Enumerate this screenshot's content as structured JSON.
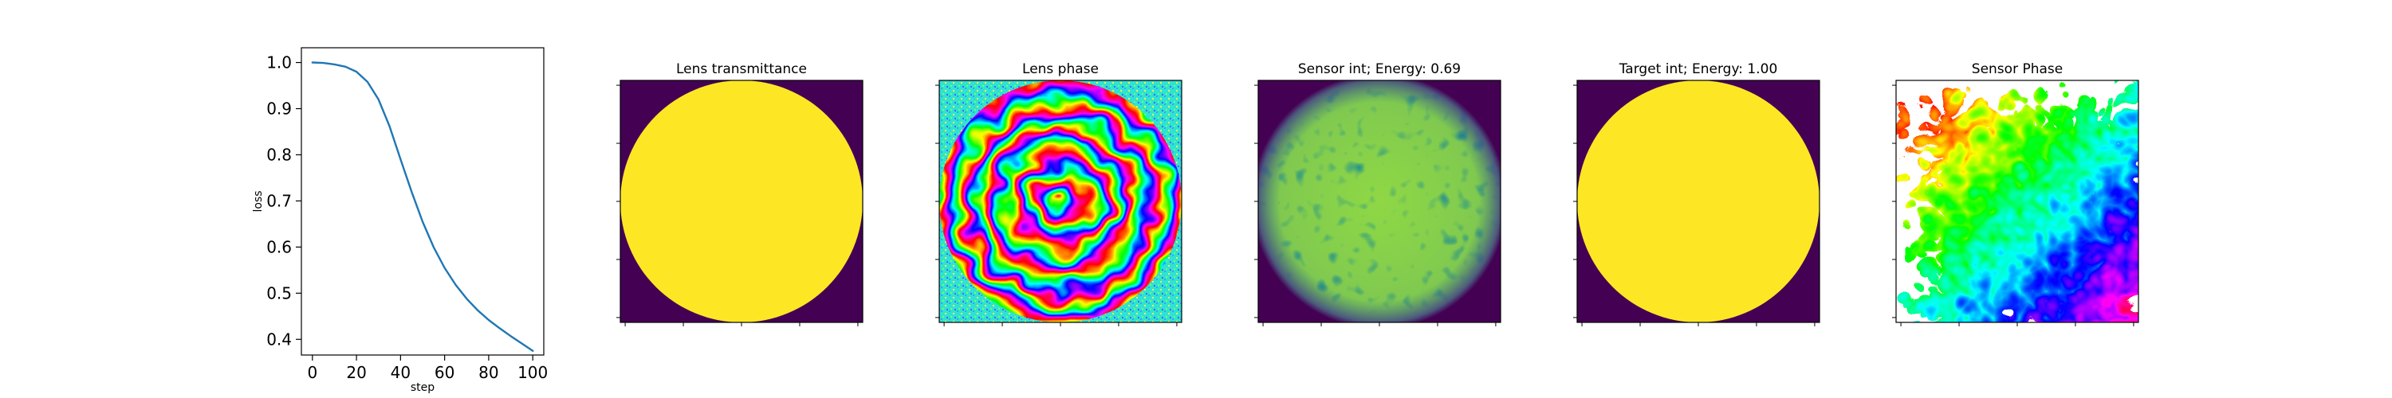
{
  "chart_data": [
    {
      "type": "line",
      "xlabel": "step",
      "ylabel": "loss",
      "xlim": [
        -5,
        105
      ],
      "ylim": [
        0.366,
        1.032
      ],
      "xticks": [
        "0",
        "20",
        "40",
        "60",
        "80",
        "100"
      ],
      "yticks": [
        "0.4",
        "0.5",
        "0.6",
        "0.7",
        "0.8",
        "0.9",
        "1.0"
      ],
      "series": [
        {
          "color": "#1f77b4",
          "x": [
            0,
            5,
            10,
            15,
            20,
            25,
            30,
            35,
            40,
            45,
            50,
            55,
            60,
            65,
            70,
            75,
            80,
            85,
            90,
            95,
            100
          ],
          "values": [
            1.0,
            0.999,
            0.996,
            0.991,
            0.98,
            0.958,
            0.92,
            0.862,
            0.79,
            0.72,
            0.655,
            0.6,
            0.555,
            0.518,
            0.488,
            0.463,
            0.442,
            0.424,
            0.407,
            0.391,
            0.375
          ]
        }
      ]
    },
    {
      "type": "heatmap",
      "title": "Lens transmittance",
      "colormap": "viridis",
      "pattern": "disk"
    },
    {
      "type": "heatmap",
      "title": "Lens phase",
      "colormap": "hsv",
      "pattern": "phase-rings"
    },
    {
      "type": "heatmap",
      "title": "Sensor int; Energy: 0.69",
      "colormap": "viridis",
      "pattern": "speckle-disk"
    },
    {
      "type": "heatmap",
      "title": "Target int; Energy: 1.00",
      "colormap": "viridis",
      "pattern": "disk"
    },
    {
      "type": "heatmap",
      "title": "Sensor Phase",
      "colormap": "hsv",
      "pattern": "phase-speckle"
    }
  ]
}
